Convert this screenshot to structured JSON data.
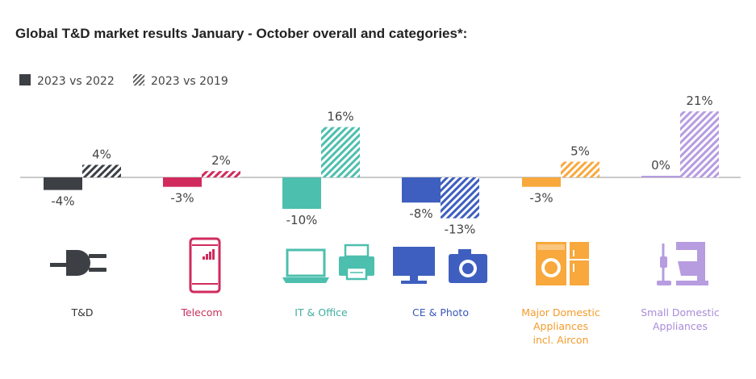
{
  "title": "Global T&D market results January - October overall and categories*:",
  "chart_data": {
    "type": "bar",
    "categories": [
      "T&D",
      "Telecom",
      "IT & Office",
      "CE & Photo",
      "Major Domestic Appliances incl. Aircon",
      "Small Domestic Appliances"
    ],
    "category_lines": [
      [
        "T&D"
      ],
      [
        "Telecom"
      ],
      [
        "IT & Office"
      ],
      [
        "CE & Photo"
      ],
      [
        "Major Domestic",
        "Appliances",
        "incl. Aircon"
      ],
      [
        "Small Domestic",
        "Appliances"
      ]
    ],
    "category_colors": [
      "#3c3f44",
      "#d12b5d",
      "#4dbfae",
      "#3e5fbf",
      "#f8a83c",
      "#b79ce0"
    ],
    "category_label_colors": [
      "#333333",
      "#c8325e",
      "#3fae9f",
      "#3c57b8",
      "#f39b2c",
      "#a98cd8"
    ],
    "icons": [
      "plug-icon",
      "smartphone-icon",
      "laptop-printer-icon",
      "tv-camera-icon",
      "washer-fridge-icon",
      "vacuum-mixer-icon"
    ],
    "series": [
      {
        "name": "2023 vs 2022",
        "pattern": "solid",
        "values": [
          -4,
          -3,
          -10,
          -8,
          -3,
          0
        ]
      },
      {
        "name": "2023 vs 2019",
        "pattern": "hatched",
        "values": [
          4,
          2,
          16,
          -13,
          5,
          21
        ]
      }
    ],
    "value_suffix": "%",
    "legend": "top-left",
    "grid": false
  }
}
